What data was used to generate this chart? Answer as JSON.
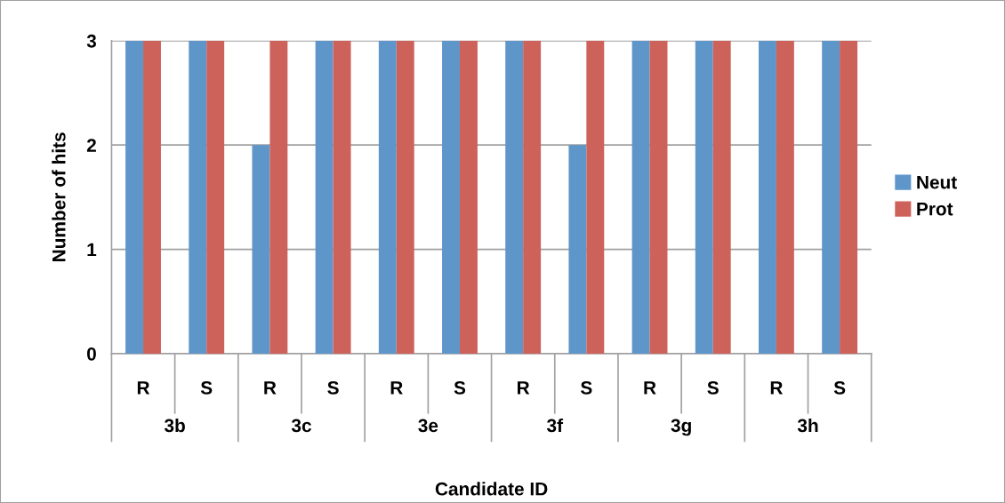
{
  "chart_data": {
    "type": "bar",
    "xlabel": "Candidate ID",
    "ylabel": "Number of hits",
    "categories": [
      "R",
      "S",
      "R",
      "S",
      "R",
      "S",
      "R",
      "S",
      "R",
      "S",
      "R",
      "S"
    ],
    "annotations": [
      "3b",
      "3c",
      "3e",
      "3f",
      "3g",
      "3h"
    ],
    "series": [
      {
        "name": "Neut",
        "color": "#5f96ca",
        "values": [
          3,
          3,
          2,
          3,
          3,
          3,
          3,
          2,
          3,
          3,
          3,
          3
        ]
      },
      {
        "name": "Prot",
        "color": "#cd625b",
        "values": [
          3,
          3,
          3,
          3,
          3,
          3,
          3,
          3,
          3,
          3,
          3,
          3
        ]
      }
    ],
    "ylim": [
      0,
      3
    ],
    "yticks": [
      0,
      1,
      2,
      3
    ],
    "grid": "y",
    "legend": "right"
  }
}
